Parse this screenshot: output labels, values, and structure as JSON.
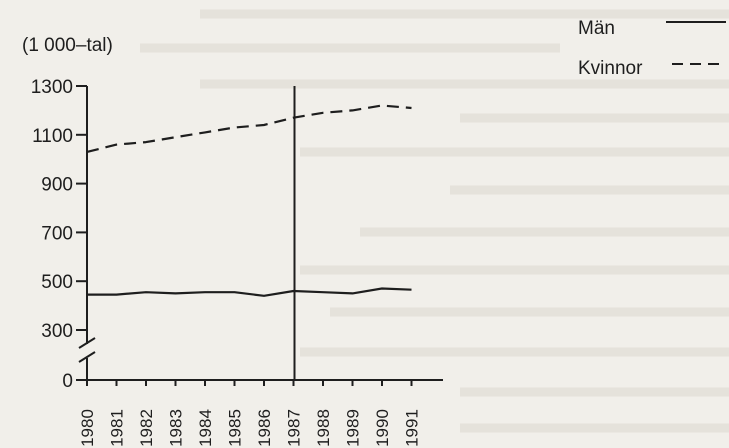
{
  "chart_data": {
    "type": "line",
    "unit_label": "(1 000–tal)",
    "x": [
      "1980",
      "1981",
      "1982",
      "1983",
      "1984",
      "1985",
      "1986",
      "1987",
      "1988",
      "1989",
      "1990",
      "1991"
    ],
    "y_ticks": [
      "0",
      "300",
      "500",
      "700",
      "900",
      "1100",
      "1300"
    ],
    "y_axis_break": true,
    "grid": false,
    "vertical_marker": "1987",
    "legend_position": "top-right",
    "series": [
      {
        "name": "Män",
        "style": "solid",
        "values": [
          445,
          445,
          455,
          450,
          455,
          455,
          440,
          460,
          455,
          450,
          470,
          465
        ]
      },
      {
        "name": "Kvinnor",
        "style": "dashed",
        "values": [
          1030,
          1060,
          1070,
          1090,
          1110,
          1130,
          1140,
          1170,
          1190,
          1200,
          1220,
          1210
        ]
      }
    ],
    "colors": {
      "line": "#1e1e1e",
      "background": "#f1efea"
    }
  }
}
